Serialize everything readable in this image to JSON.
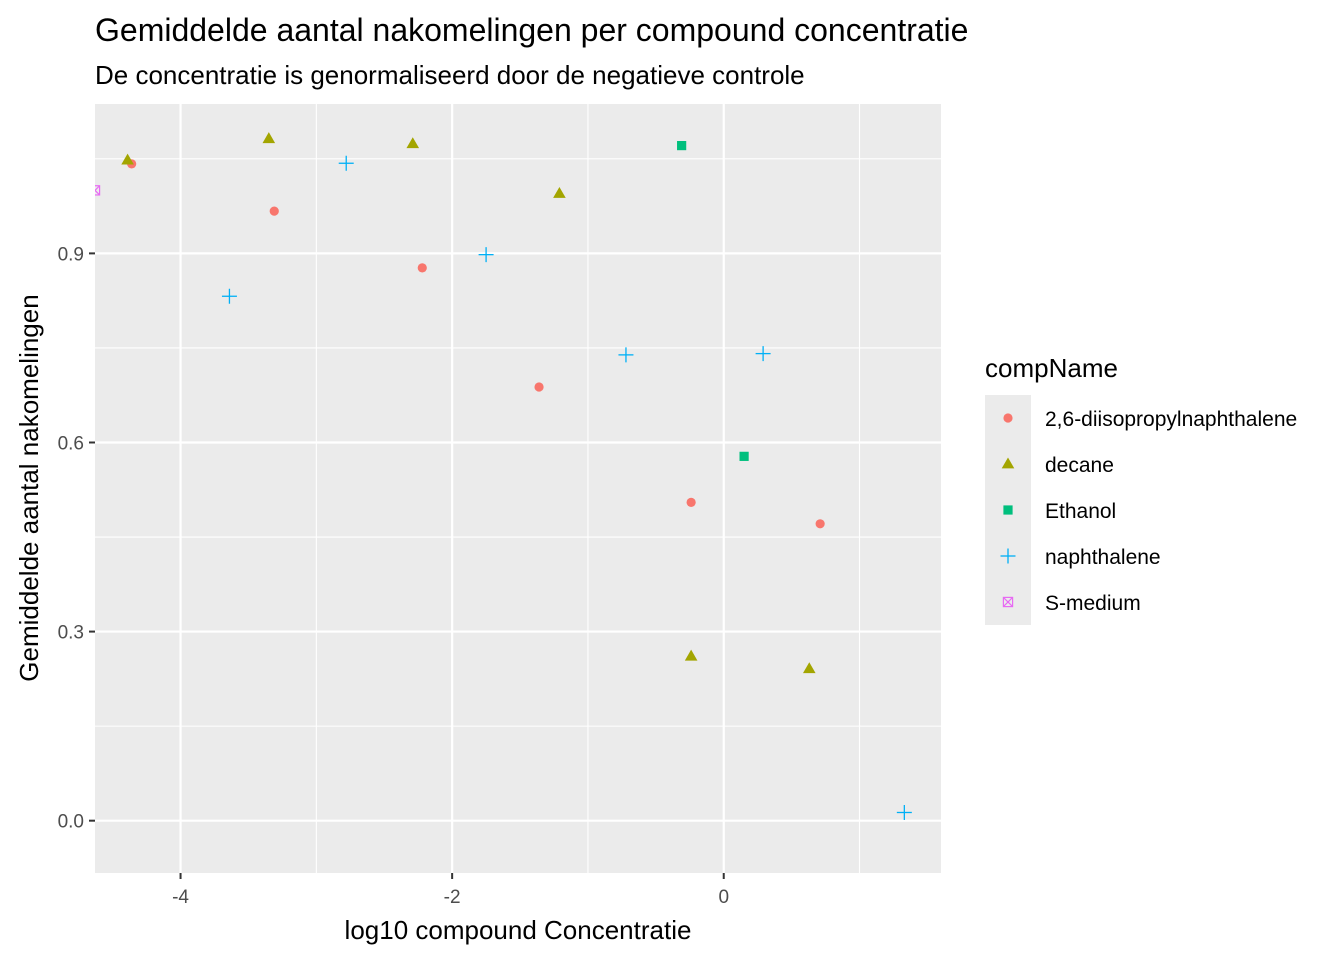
{
  "chart_data": {
    "type": "scatter",
    "title": "Gemiddelde aantal nakomelingen per compound concentratie",
    "subtitle": "De concentratie is genormaliseerd door de negatieve controle",
    "xlabel": "log10  compound Concentratie",
    "ylabel": "Gemiddelde aantal nakomelingen",
    "xlim": [
      -4.63,
      1.6
    ],
    "ylim": [
      -0.083,
      1.137
    ],
    "x_ticks": [
      -4,
      -2,
      0
    ],
    "x_tick_labels": [
      "-4",
      "-2",
      "0"
    ],
    "y_ticks": [
      0.0,
      0.3,
      0.6,
      0.9
    ],
    "y_tick_labels": [
      "0.0",
      "0.3",
      "0.6",
      "0.9"
    ],
    "grid": true,
    "legend_title": "compName",
    "legend_position": "right",
    "series": [
      {
        "name": "2,6-diisopropylnaphthalene",
        "color": "#F8766D",
        "shape": "circle",
        "points": [
          {
            "x": -4.36,
            "y": 1.042
          },
          {
            "x": -3.31,
            "y": 0.967
          },
          {
            "x": -2.22,
            "y": 0.877
          },
          {
            "x": -1.36,
            "y": 0.688
          },
          {
            "x": -0.24,
            "y": 0.505
          },
          {
            "x": 0.71,
            "y": 0.471
          }
        ]
      },
      {
        "name": "decane",
        "color": "#A3A500",
        "shape": "triangle",
        "points": [
          {
            "x": -4.39,
            "y": 1.048
          },
          {
            "x": -3.35,
            "y": 1.082
          },
          {
            "x": -2.29,
            "y": 1.074
          },
          {
            "x": -1.21,
            "y": 0.995
          },
          {
            "x": -0.24,
            "y": 0.261
          },
          {
            "x": 0.63,
            "y": 0.241
          }
        ]
      },
      {
        "name": "Ethanol",
        "color": "#00BF7D",
        "shape": "square",
        "points": [
          {
            "x": -0.31,
            "y": 1.071
          },
          {
            "x": 0.15,
            "y": 0.578
          }
        ]
      },
      {
        "name": "naphthalene",
        "color": "#00B0F6",
        "shape": "plus",
        "points": [
          {
            "x": -3.64,
            "y": 0.832
          },
          {
            "x": -2.78,
            "y": 1.043
          },
          {
            "x": -1.75,
            "y": 0.898
          },
          {
            "x": -0.72,
            "y": 0.739
          },
          {
            "x": 0.29,
            "y": 0.741
          },
          {
            "x": 1.33,
            "y": 0.013
          }
        ]
      },
      {
        "name": "S-medium",
        "color": "#E76BF3",
        "shape": "square-cross",
        "points": [
          {
            "x": -4.63,
            "y": 1.0
          }
        ]
      }
    ]
  }
}
